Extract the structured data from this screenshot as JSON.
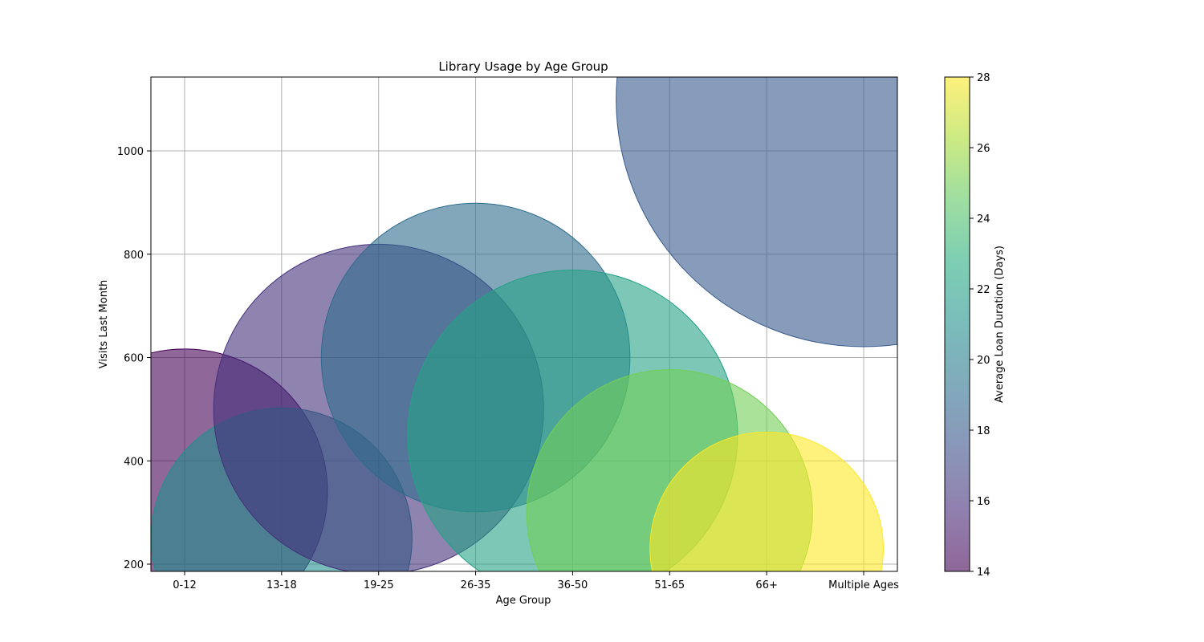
{
  "chart_data": {
    "type": "scatter",
    "title": "Library Usage by Age Group",
    "xlabel": "Age Group",
    "ylabel": "Visits Last Month",
    "categories": [
      "0-12",
      "13-18",
      "19-25",
      "26-35",
      "36-50",
      "51-65",
      "66+",
      "Multiple Ages"
    ],
    "points": [
      {
        "category": "0-12",
        "visits": 340,
        "loan_days": 14,
        "bubble_size": 300
      },
      {
        "category": "13-18",
        "visits": 250,
        "loan_days": 21,
        "bubble_size": 250
      },
      {
        "category": "19-25",
        "visits": 500,
        "loan_days": 16,
        "bubble_size": 400
      },
      {
        "category": "26-35",
        "visits": 600,
        "loan_days": 19,
        "bubble_size": 350
      },
      {
        "category": "36-50",
        "visits": 450,
        "loan_days": 22,
        "bubble_size": 400
      },
      {
        "category": "51-65",
        "visits": 300,
        "loan_days": 25,
        "bubble_size": 300
      },
      {
        "category": "66+",
        "visits": 230,
        "loan_days": 28,
        "bubble_size": 200
      },
      {
        "category": "Multiple Ages",
        "visits": 1100,
        "loan_days": 18,
        "bubble_size": 900
      }
    ],
    "ylim": [
      186,
      1143
    ],
    "yticks": [
      200,
      400,
      600,
      800,
      1000
    ],
    "grid": true,
    "colorbar": {
      "label": "Average Loan Duration (Days)",
      "range": [
        14,
        28
      ],
      "ticks": [
        14,
        16,
        18,
        20,
        22,
        24,
        26,
        28
      ],
      "colormap": "viridis"
    }
  }
}
